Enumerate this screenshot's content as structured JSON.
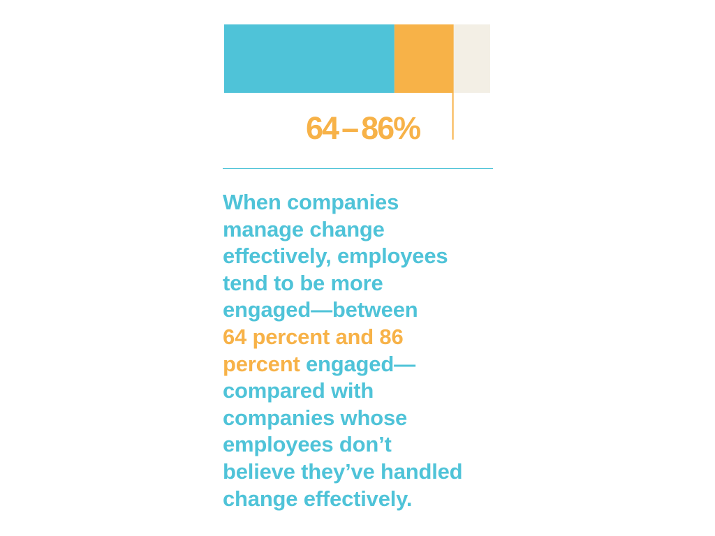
{
  "chart_data": {
    "type": "bar",
    "orientation": "horizontal",
    "stacked": true,
    "range": {
      "low": 64,
      "high": 86,
      "unit": "%"
    },
    "segments": [
      {
        "from": 0,
        "to": 64,
        "color": "#4FC3D8"
      },
      {
        "from": 64,
        "to": 86,
        "color": "#F7B248"
      },
      {
        "from": 86,
        "to": 100,
        "color": "#F3EFE5"
      }
    ],
    "xlim": [
      0,
      100
    ],
    "marker_at": 86,
    "marker_color": "#F7B248",
    "grid": false,
    "range_label": {
      "low_text": "64",
      "dash": "–",
      "high_text": "86%"
    }
  },
  "caption": {
    "lines": [
      [
        {
          "text": "When companies",
          "hl": false
        }
      ],
      [
        {
          "text": "manage change",
          "hl": false
        }
      ],
      [
        {
          "text": "effectively, employees",
          "hl": false
        }
      ],
      [
        {
          "text": "tend to be more",
          "hl": false
        }
      ],
      [
        {
          "text": "engaged—between",
          "hl": false
        }
      ],
      [
        {
          "text": "64 percent and 86",
          "hl": true
        }
      ],
      [
        {
          "text": "percent",
          "hl": true
        },
        {
          "text": " engaged—",
          "hl": false
        }
      ],
      [
        {
          "text": "compared with",
          "hl": false
        }
      ],
      [
        {
          "text": "companies whose",
          "hl": false
        }
      ],
      [
        {
          "text": "employees don’t",
          "hl": false
        }
      ],
      [
        {
          "text": "believe they’ve handled",
          "hl": false
        }
      ],
      [
        {
          "text": "change effectively.",
          "hl": false
        }
      ]
    ]
  },
  "colors": {
    "accent_blue": "#4FC3D8",
    "accent_orange": "#F7B248",
    "remainder": "#F3EFE5"
  }
}
